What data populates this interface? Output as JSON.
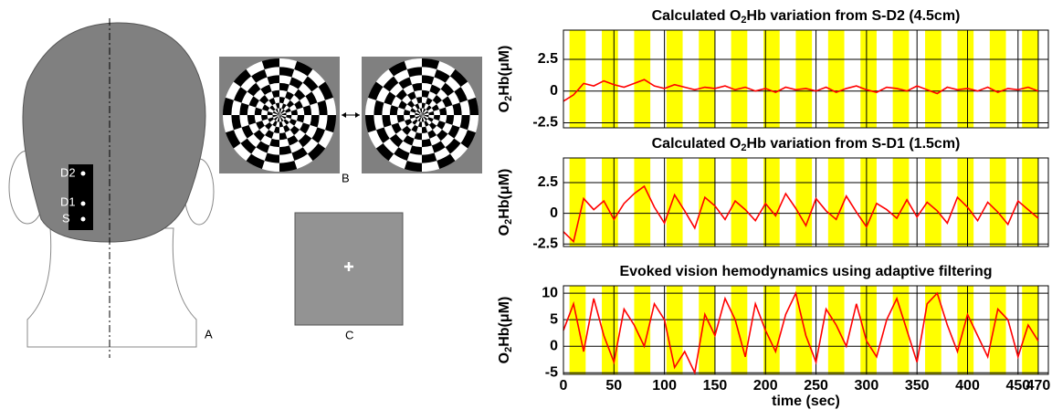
{
  "diagram": {
    "labels": {
      "D2": "D2",
      "D1": "D1",
      "S": "S",
      "A": "A",
      "B": "B",
      "C": "C"
    }
  },
  "chart_data": [
    {
      "type": "line",
      "title_parts": [
        "Calculated O",
        "2",
        "Hb variation from S-D2 (4.5cm)"
      ],
      "ylabel_parts": [
        "O",
        "2",
        "Hb(μM)"
      ],
      "xlim": [
        0,
        480
      ],
      "xticks": [
        0,
        50,
        100,
        150,
        200,
        250,
        300,
        350,
        400,
        450,
        470
      ],
      "xtick_labels": false,
      "ylim": [
        -2.9,
        4.8
      ],
      "yticks": [
        2.5,
        0,
        -2.5
      ],
      "grid": true,
      "shaded_regions": [
        [
          6,
          22
        ],
        [
          38,
          54
        ],
        [
          70,
          86
        ],
        [
          102,
          118
        ],
        [
          134,
          150
        ],
        [
          166,
          182
        ],
        [
          198,
          214
        ],
        [
          230,
          246
        ],
        [
          262,
          278
        ],
        [
          294,
          310
        ],
        [
          326,
          342
        ],
        [
          358,
          374
        ],
        [
          390,
          406
        ],
        [
          422,
          438
        ],
        [
          454,
          470
        ]
      ],
      "shade_color": "#ffff00",
      "x": [
        0,
        10,
        20,
        30,
        40,
        50,
        60,
        70,
        80,
        90,
        100,
        110,
        120,
        130,
        140,
        150,
        160,
        170,
        180,
        190,
        200,
        210,
        220,
        230,
        240,
        250,
        260,
        270,
        280,
        290,
        300,
        310,
        320,
        330,
        340,
        350,
        360,
        370,
        380,
        390,
        400,
        410,
        420,
        430,
        440,
        450,
        460,
        470
      ],
      "series": [
        {
          "color": "#ff0000",
          "values": [
            -0.8,
            -0.3,
            0.6,
            0.4,
            0.8,
            0.5,
            0.3,
            0.6,
            0.9,
            0.4,
            0.2,
            0.5,
            0.3,
            0.1,
            0.3,
            0.2,
            0.4,
            0.1,
            0.3,
            0,
            0.2,
            -0.1,
            0.3,
            0.1,
            0.2,
            0,
            0.3,
            -0.1,
            0.2,
            0.4,
            0.1,
            -0.1,
            0.3,
            0.2,
            0,
            0.4,
            0.1,
            -0.2,
            0.3,
            0.1,
            0.2,
            0,
            0.3,
            -0.1,
            0.2,
            0.1,
            0.3,
            0
          ]
        }
      ]
    },
    {
      "type": "line",
      "title_parts": [
        "Calculated O",
        "2",
        "Hb variation from S-D1 (1.5cm)"
      ],
      "ylabel_parts": [
        "O",
        "2",
        "Hb(μM)"
      ],
      "xlim": [
        0,
        480
      ],
      "xticks": [
        0,
        50,
        100,
        150,
        200,
        250,
        300,
        350,
        400,
        450,
        470
      ],
      "xtick_labels": false,
      "ylim": [
        -2.7,
        4.5
      ],
      "yticks": [
        2.5,
        0,
        -2.5
      ],
      "grid": true,
      "shaded_regions": [
        [
          6,
          22
        ],
        [
          38,
          54
        ],
        [
          70,
          86
        ],
        [
          102,
          118
        ],
        [
          134,
          150
        ],
        [
          166,
          182
        ],
        [
          198,
          214
        ],
        [
          230,
          246
        ],
        [
          262,
          278
        ],
        [
          294,
          310
        ],
        [
          326,
          342
        ],
        [
          358,
          374
        ],
        [
          390,
          406
        ],
        [
          422,
          438
        ],
        [
          454,
          470
        ]
      ],
      "shade_color": "#ffff00",
      "x": [
        0,
        10,
        20,
        30,
        40,
        50,
        60,
        70,
        80,
        90,
        100,
        110,
        120,
        130,
        140,
        150,
        160,
        170,
        180,
        190,
        200,
        210,
        220,
        230,
        240,
        250,
        260,
        270,
        280,
        290,
        300,
        310,
        320,
        330,
        340,
        350,
        360,
        370,
        380,
        390,
        400,
        410,
        420,
        430,
        440,
        450,
        460,
        470
      ],
      "series": [
        {
          "color": "#ff0000",
          "values": [
            -1.5,
            -2.3,
            1.2,
            0.3,
            1.0,
            -0.5,
            0.8,
            1.6,
            2.2,
            0.5,
            -0.8,
            1.5,
            0.2,
            -1.2,
            1.3,
            0.6,
            -0.5,
            1.0,
            0.3,
            -0.6,
            0.8,
            -0.2,
            1.6,
            0.4,
            -1.0,
            1.2,
            0.2,
            -0.5,
            1.4,
            0.1,
            -1.1,
            0.8,
            0.3,
            -0.4,
            1.1,
            -0.3,
            0.9,
            0.2,
            -0.8,
            1.3,
            0.5,
            -0.6,
            0.9,
            0.1,
            -0.9,
            1.0,
            0.3,
            -0.4
          ]
        }
      ]
    },
    {
      "type": "line",
      "title_parts": [
        "Evoked vision hemodynamics using adaptive filtering"
      ],
      "ylabel_parts": [
        "O",
        "2",
        "Hb(μM)"
      ],
      "xlabel": "time (sec)",
      "xlim": [
        0,
        480
      ],
      "xticks": [
        0,
        50,
        100,
        150,
        200,
        250,
        300,
        350,
        400,
        450,
        470
      ],
      "xtick_labels": true,
      "ylim": [
        -5.3,
        11.4
      ],
      "yticks": [
        10,
        5,
        0,
        -5
      ],
      "grid": true,
      "shaded_regions": [
        [
          6,
          22
        ],
        [
          38,
          54
        ],
        [
          70,
          86
        ],
        [
          102,
          118
        ],
        [
          134,
          150
        ],
        [
          166,
          182
        ],
        [
          198,
          214
        ],
        [
          230,
          246
        ],
        [
          262,
          278
        ],
        [
          294,
          310
        ],
        [
          326,
          342
        ],
        [
          358,
          374
        ],
        [
          390,
          406
        ],
        [
          422,
          438
        ],
        [
          454,
          470
        ]
      ],
      "shade_color": "#ffff00",
      "x": [
        0,
        10,
        20,
        30,
        40,
        50,
        60,
        70,
        80,
        90,
        100,
        110,
        120,
        130,
        140,
        150,
        160,
        170,
        180,
        190,
        200,
        210,
        220,
        230,
        240,
        250,
        260,
        270,
        280,
        290,
        300,
        310,
        320,
        330,
        340,
        350,
        360,
        370,
        380,
        390,
        400,
        410,
        420,
        430,
        440,
        450,
        460,
        470
      ],
      "series": [
        {
          "color": "#ff0000",
          "values": [
            3,
            8,
            -1,
            9,
            2,
            -3,
            7,
            4,
            0,
            8,
            5,
            -4,
            -1,
            -5,
            6,
            2,
            9,
            5,
            -2,
            8,
            3,
            -1,
            6,
            10,
            2,
            -3,
            7,
            4,
            0,
            8,
            1,
            -2,
            5,
            9,
            3,
            -3,
            8,
            10,
            4,
            -1,
            6,
            2,
            -2,
            7,
            5,
            -2,
            4,
            1
          ]
        }
      ]
    }
  ]
}
